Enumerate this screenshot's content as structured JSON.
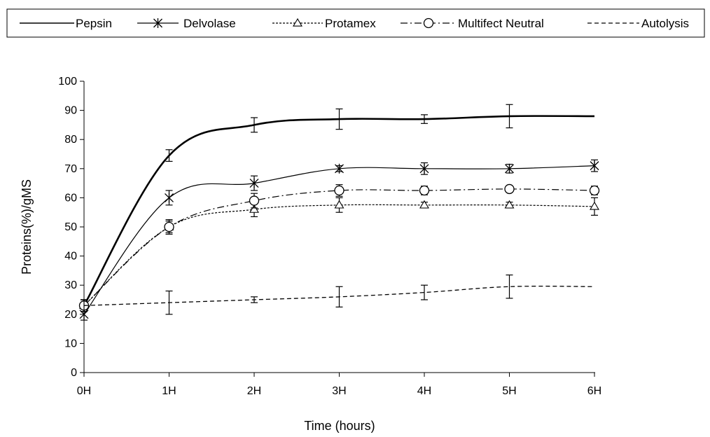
{
  "chart_data": {
    "type": "line",
    "xlabel": "Time (hours)",
    "ylabel": "Proteins(%)/gMS",
    "categories": [
      "0H",
      "1H",
      "2H",
      "3H",
      "4H",
      "5H",
      "6H"
    ],
    "ylim": [
      0,
      100
    ],
    "yticks": [
      "0",
      "10",
      "20",
      "30",
      "40",
      "50",
      "60",
      "70",
      "80",
      "90",
      "100"
    ],
    "grid": false,
    "legend_position": "top",
    "series": [
      {
        "name": "Pepsin",
        "values": [
          23,
          74.5,
          85,
          87,
          87,
          88,
          88
        ],
        "errors": [
          2,
          2,
          2.5,
          3.5,
          1.5,
          4,
          null
        ],
        "style": "thick-solid",
        "marker": "none",
        "color": "#000000"
      },
      {
        "name": "Delvolase",
        "values": [
          20,
          60,
          65,
          70,
          70,
          70,
          71
        ],
        "errors": [
          2,
          2.5,
          2.5,
          1,
          2,
          1.5,
          2
        ],
        "style": "solid",
        "marker": "asterisk",
        "color": "#000000"
      },
      {
        "name": "Protamex",
        "values": [
          23,
          50,
          56,
          57.5,
          57.5,
          57.5,
          57
        ],
        "errors": [
          2,
          2.5,
          2.5,
          2.5,
          1,
          1,
          3
        ],
        "style": "dotted",
        "marker": "triangle",
        "color": "#000000"
      },
      {
        "name": "Multifect Neutral",
        "values": [
          23,
          50,
          59,
          62.5,
          62.5,
          63,
          62.5
        ],
        "errors": [
          2,
          2,
          2.5,
          2,
          1.5,
          1,
          1.5
        ],
        "style": "dash-dot",
        "marker": "circle",
        "color": "#000000"
      },
      {
        "name": "Autolysis",
        "values": [
          23,
          24,
          25,
          26,
          27.5,
          29.5,
          29.5
        ],
        "errors": [
          2,
          4,
          1,
          3.5,
          2.5,
          4,
          null
        ],
        "style": "dashed",
        "marker": "none",
        "color": "#000000"
      }
    ]
  }
}
